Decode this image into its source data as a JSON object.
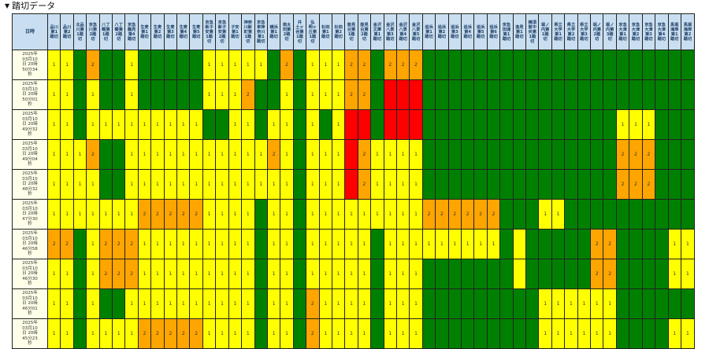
{
  "section": {
    "title": "踏切データ"
  },
  "table": {
    "date_header": "日時",
    "crossings": [
      "品川\n第1\n踏切",
      "品川\n第2\n踏切",
      "北品\n川第\n1踏\n切",
      "京急\n川第\n2踏\n切",
      "八丁\n畷第\n1踏\n切",
      "八丁\n畷第\n2踏\n切",
      "京急\n鶴見\n第4\n踏切",
      "生麦\n第1\n踏切",
      "生麦\n第2\n踏切",
      "生麦\n第3\n踏切",
      "生麦\n第4\n踏切",
      "生麦\n第5\n踏切",
      "京急\n新子\n安第\n1踏\n切",
      "京急\n新子\n安第\n2踏\n切",
      "子安\n第1\n踏切",
      "神奈\n川新\n町第\n1踏\n切",
      "京急\n東神\n奈川\n第1\n踏切",
      "横浜\n第1\n踏切",
      "南太\n田第\n2踏\n切",
      "井\n土ヶ\n谷第\n1踏\n切",
      "弘\n明ヶ\n丘第\n1踏\n切",
      "杉田\n第1\n踏切",
      "杉田\n第2\n踏切",
      "能見\n台第\n1踏\n切",
      "能見\n台第\n2踏\n切",
      "金沢\n文庫\n第1\n踏切",
      "金沢\n八景\n第3\n踏切",
      "金沢\n八景\n第4\n踏切",
      "金沢\n八景\n第5\n踏切",
      "追浜\n第1\n踏切",
      "追浜\n第2\n踏切",
      "追浜\n第3\n踏切",
      "追浜\n第4\n踏切",
      "追浜\n第5\n踏切",
      "追浜\n第6\n踏切",
      "京急\n田浦\n第1\n踏切",
      "逸見\n第1\n踏切",
      "横須\n賀中\n央第\n1踏\n切",
      "堀ノ\n内第\n1踏\n切",
      "県立\n大学\n第1\n踏切",
      "県立\n大学\n第2\n踏切",
      "県立\n大学\n第3\n踏切",
      "堀ノ\n内第\n2踏\n切",
      "堀ノ\n内第\n3踏\n切",
      "京急\n大津\n第1\n踏切",
      "京急\n大津\n第2\n踏切",
      "京急\n大津\n第3\n踏切",
      "京急\n大津\n第4\n踏切",
      "馬堀\n海岸\n第1\n踏切",
      "馬堀\n海岸\n第2\n踏切"
    ],
    "rows": [
      {
        "datetime": "2025年\n03月10\n日 20時\n50分34\n秒",
        "values": [
          "1",
          "1",
          "",
          "2",
          "",
          "",
          "1",
          "",
          "",
          "",
          "",
          "",
          "1",
          "1",
          "1",
          "1",
          "1",
          "",
          "2",
          "",
          "1",
          "1",
          "1",
          "2",
          "2",
          "",
          "2",
          "2",
          "2",
          "",
          "",
          "",
          "",
          "",
          "",
          "",
          "",
          "",
          "",
          "",
          "",
          "",
          "",
          "",
          "",
          "",
          "",
          "",
          "",
          ""
        ],
        "status": [
          0,
          0,
          1,
          2,
          1,
          1,
          0,
          1,
          1,
          1,
          1,
          1,
          0,
          0,
          0,
          0,
          0,
          1,
          2,
          1,
          0,
          0,
          0,
          2,
          2,
          1,
          2,
          2,
          2,
          1,
          1,
          1,
          1,
          1,
          1,
          1,
          1,
          1,
          1,
          1,
          1,
          1,
          1,
          1,
          1,
          1,
          1,
          1,
          1,
          1
        ]
      },
      {
        "datetime": "2025年\n03月10\n日 20時\n50分01\n秒",
        "values": [
          "1",
          "1",
          "",
          "1",
          "",
          "",
          "1",
          "",
          "",
          "",
          "",
          "",
          "1",
          "1",
          "1",
          "2",
          "",
          "",
          "1",
          "",
          "1",
          "1",
          "1",
          "2",
          "2",
          "",
          "",
          "",
          "",
          "",
          "",
          "",
          "",
          "",
          "",
          "",
          "",
          "",
          "",
          "",
          "",
          "",
          "",
          "",
          "",
          "",
          "",
          "",
          "",
          ""
        ],
        "status": [
          0,
          0,
          1,
          0,
          1,
          1,
          0,
          1,
          1,
          1,
          1,
          1,
          0,
          0,
          0,
          2,
          1,
          1,
          0,
          1,
          0,
          0,
          0,
          2,
          2,
          1,
          3,
          3,
          3,
          1,
          1,
          1,
          1,
          1,
          1,
          1,
          1,
          1,
          1,
          1,
          1,
          1,
          1,
          1,
          1,
          1,
          1,
          1,
          1,
          1
        ]
      },
      {
        "datetime": "2025年\n03月10\n日 20時\n49分32\n秒",
        "values": [
          "1",
          "1",
          "",
          "1",
          "1",
          "1",
          "1",
          "1",
          "1",
          "1",
          "1",
          "1",
          "",
          "",
          "1",
          "1",
          "",
          "1",
          "1",
          "",
          "1",
          "",
          "1",
          "",
          "",
          "",
          "",
          "",
          "",
          "",
          "",
          "",
          "",
          "",
          "",
          "",
          "",
          "",
          "",
          "",
          "",
          "",
          "",
          "",
          "1",
          "1",
          "1",
          "",
          "",
          ""
        ],
        "status": [
          0,
          0,
          1,
          0,
          0,
          0,
          0,
          0,
          0,
          0,
          0,
          0,
          1,
          1,
          0,
          0,
          1,
          0,
          0,
          1,
          0,
          1,
          0,
          3,
          3,
          1,
          3,
          3,
          3,
          1,
          1,
          1,
          1,
          1,
          1,
          1,
          1,
          1,
          1,
          1,
          1,
          1,
          1,
          1,
          0,
          0,
          0,
          1,
          1,
          1
        ]
      },
      {
        "datetime": "2025年\n03月10\n日 20時\n49分04\n秒",
        "values": [
          "1",
          "1",
          "1",
          "2",
          "",
          "",
          "1",
          "1",
          "1",
          "1",
          "1",
          "1",
          "1",
          "1",
          "1",
          "1",
          "1",
          "2",
          "1",
          "",
          "1",
          "1",
          "1",
          "",
          "2",
          "1",
          "1",
          "1",
          "1",
          "",
          "",
          "",
          "",
          "",
          "",
          "",
          "",
          "",
          "",
          "",
          "",
          "",
          "",
          "",
          "2",
          "2",
          "2",
          "",
          "",
          ""
        ],
        "status": [
          0,
          0,
          0,
          2,
          1,
          1,
          0,
          0,
          0,
          0,
          0,
          0,
          0,
          0,
          0,
          0,
          0,
          2,
          0,
          1,
          0,
          0,
          0,
          3,
          2,
          0,
          0,
          0,
          0,
          1,
          1,
          1,
          1,
          1,
          1,
          1,
          1,
          1,
          1,
          1,
          1,
          1,
          1,
          1,
          2,
          2,
          2,
          1,
          1,
          1
        ]
      },
      {
        "datetime": "2025年\n03月10\n日 20時\n48分32\n秒",
        "values": [
          "1",
          "1",
          "1",
          "1",
          "",
          "",
          "1",
          "1",
          "1",
          "1",
          "1",
          "1",
          "1",
          "1",
          "1",
          "1",
          "1",
          "1",
          "1",
          "",
          "1",
          "1",
          "1",
          "",
          "2",
          "1",
          "1",
          "1",
          "1",
          "",
          "",
          "",
          "",
          "",
          "",
          "",
          "",
          "",
          "",
          "",
          "",
          "",
          "",
          "",
          "2",
          "2",
          "2",
          "",
          "",
          ""
        ],
        "status": [
          0,
          0,
          0,
          0,
          1,
          1,
          0,
          0,
          0,
          0,
          0,
          0,
          0,
          0,
          0,
          0,
          0,
          0,
          0,
          1,
          0,
          0,
          0,
          3,
          2,
          0,
          0,
          0,
          0,
          1,
          1,
          1,
          1,
          1,
          1,
          1,
          1,
          1,
          1,
          1,
          1,
          1,
          1,
          1,
          2,
          2,
          2,
          1,
          1,
          1
        ]
      },
      {
        "datetime": "2025年\n03月10\n日 20時\n47分30\n秒",
        "values": [
          "1",
          "1",
          "1",
          "1",
          "1",
          "1",
          "1",
          "2",
          "2",
          "2",
          "2",
          "2",
          "1",
          "1",
          "1",
          "1",
          "",
          "1",
          "1",
          "",
          "1",
          "1",
          "1",
          "1",
          "1",
          "1",
          "1",
          "1",
          "1",
          "2",
          "2",
          "2",
          "2",
          "2",
          "2",
          "",
          "",
          "",
          "1",
          "1",
          "",
          "",
          "",
          "",
          "",
          "",
          "",
          "",
          "",
          ""
        ],
        "status": [
          0,
          0,
          0,
          0,
          0,
          0,
          0,
          2,
          2,
          2,
          2,
          2,
          0,
          0,
          0,
          0,
          1,
          0,
          0,
          1,
          0,
          0,
          0,
          0,
          0,
          0,
          0,
          0,
          0,
          2,
          2,
          2,
          2,
          2,
          2,
          1,
          1,
          1,
          0,
          0,
          1,
          1,
          1,
          1,
          1,
          1,
          1,
          1,
          1,
          1
        ]
      },
      {
        "datetime": "2025年\n03月10\n日 20時\n46分58\n秒",
        "values": [
          "2",
          "2",
          "",
          "1",
          "2",
          "2",
          "2",
          "1",
          "1",
          "1",
          "1",
          "1",
          "1",
          "1",
          "1",
          "1",
          "",
          "1",
          "1",
          "",
          "1",
          "1",
          "1",
          "1",
          "1",
          "",
          "1",
          "1",
          "1",
          "1",
          "1",
          "1",
          "1",
          "1",
          "1",
          "",
          "",
          "",
          "",
          "",
          "",
          "",
          "2",
          "2",
          "",
          "",
          "",
          "",
          "1",
          "1"
        ],
        "status": [
          2,
          2,
          1,
          0,
          2,
          2,
          2,
          0,
          0,
          0,
          0,
          0,
          0,
          0,
          0,
          0,
          1,
          0,
          0,
          1,
          0,
          0,
          0,
          0,
          0,
          1,
          0,
          0,
          0,
          0,
          0,
          0,
          0,
          0,
          0,
          1,
          0,
          1,
          1,
          1,
          1,
          1,
          2,
          2,
          1,
          1,
          1,
          1,
          0,
          0
        ]
      },
      {
        "datetime": "2025年\n03月10\n日 20時\n46分30\n秒",
        "values": [
          "1",
          "1",
          "",
          "1",
          "2",
          "2",
          "2",
          "1",
          "1",
          "1",
          "1",
          "1",
          "1",
          "1",
          "1",
          "1",
          "",
          "1",
          "1",
          "",
          "1",
          "1",
          "1",
          "1",
          "1",
          "",
          "1",
          "1",
          "1",
          "",
          "",
          "",
          "",
          "",
          "",
          "",
          "",
          "",
          "",
          "",
          "",
          "",
          "2",
          "2",
          "",
          "",
          "",
          "",
          "1",
          "1"
        ],
        "status": [
          0,
          0,
          1,
          0,
          2,
          2,
          2,
          0,
          0,
          0,
          0,
          0,
          0,
          0,
          0,
          0,
          1,
          0,
          0,
          1,
          0,
          0,
          0,
          0,
          0,
          1,
          0,
          0,
          0,
          1,
          1,
          1,
          1,
          1,
          1,
          1,
          0,
          1,
          1,
          1,
          1,
          1,
          2,
          2,
          1,
          1,
          1,
          1,
          0,
          0
        ]
      },
      {
        "datetime": "2025年\n03月10\n日 20時\n46分01\n秒",
        "values": [
          "1",
          "1",
          "",
          "1",
          "",
          "",
          "1",
          "1",
          "1",
          "1",
          "1",
          "1",
          "1",
          "1",
          "1",
          "1",
          "",
          "1",
          "1",
          "",
          "2",
          "1",
          "1",
          "1",
          "1",
          "",
          "1",
          "1",
          "1",
          "",
          "",
          "",
          "",
          "",
          "",
          "",
          "",
          "",
          "1",
          "1",
          "1",
          "1",
          "1",
          "1",
          "",
          "",
          "",
          "",
          "",
          ""
        ],
        "status": [
          0,
          0,
          1,
          0,
          1,
          1,
          0,
          0,
          0,
          0,
          0,
          0,
          0,
          0,
          0,
          0,
          1,
          0,
          0,
          1,
          2,
          0,
          0,
          0,
          0,
          1,
          0,
          0,
          0,
          1,
          1,
          1,
          1,
          1,
          1,
          1,
          1,
          1,
          0,
          0,
          0,
          0,
          0,
          0,
          1,
          1,
          1,
          1,
          1,
          1
        ]
      },
      {
        "datetime": "2025年\n03月10\n日 20時\n45分23\n秒",
        "values": [
          "1",
          "1",
          "",
          "1",
          "1",
          "1",
          "1",
          "2",
          "2",
          "2",
          "2",
          "2",
          "1",
          "1",
          "1",
          "1",
          "",
          "1",
          "1",
          "",
          "2",
          "1",
          "1",
          "1",
          "1",
          "",
          "1",
          "1",
          "1",
          "",
          "",
          "",
          "",
          "",
          "",
          "",
          "",
          "",
          "1",
          "1",
          "1",
          "1",
          "1",
          "1",
          "",
          "",
          "",
          "",
          "1",
          "1"
        ],
        "status": [
          0,
          0,
          1,
          0,
          0,
          0,
          0,
          2,
          2,
          2,
          2,
          2,
          0,
          0,
          0,
          0,
          1,
          0,
          0,
          1,
          2,
          0,
          0,
          0,
          0,
          1,
          0,
          0,
          0,
          1,
          1,
          1,
          1,
          1,
          1,
          1,
          1,
          1,
          0,
          0,
          0,
          0,
          0,
          0,
          1,
          1,
          1,
          1,
          0,
          0
        ]
      }
    ]
  },
  "colors": {
    "status_0": "#ffff00",
    "status_1": "#008000",
    "status_2": "#ffa500",
    "status_3": "#ff0000"
  }
}
